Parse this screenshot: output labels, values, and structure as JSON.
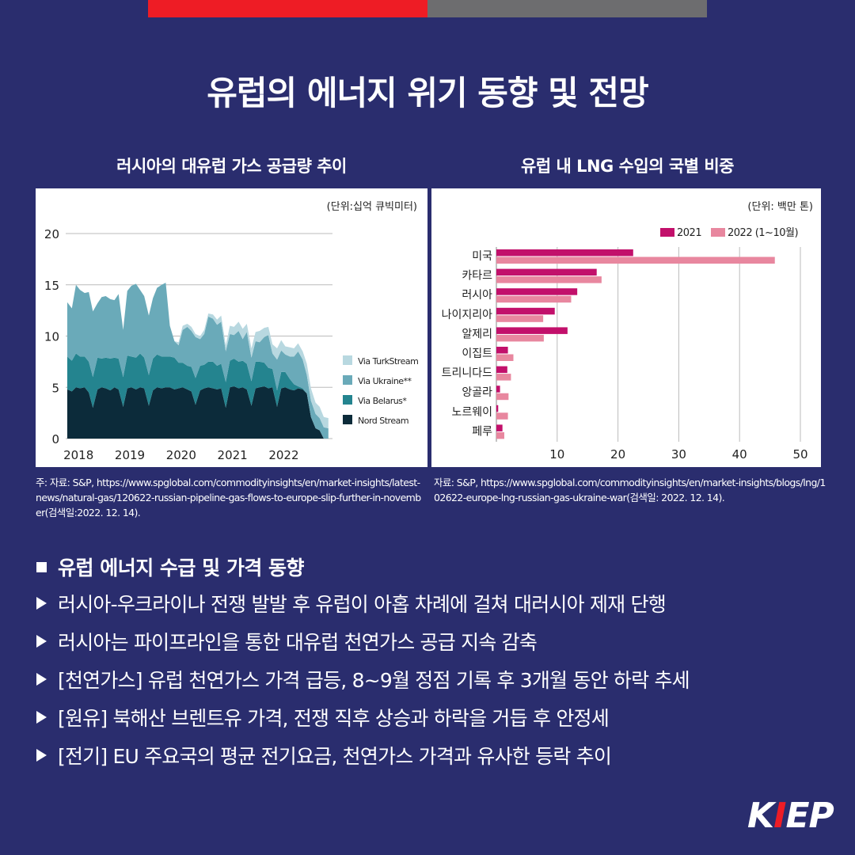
{
  "main_title": "유럽의 에너지 위기 동향 및 전망",
  "left_chart_title": "러시아의 대유럽 가스 공급량 추이",
  "right_chart_title": "유럽 내 LNG 수입의 국별 비중",
  "left_source": "주: 자료: S&P, https://www.spglobal.com/commodityinsights/en/market-insights/latest-news/natural-gas/120622-russian-pipeline-gas-flows-to-europe-slip-further-in-november(검색일:2022. 12. 14).",
  "right_source": "자료: S&P, https://www.spglobal.com/commodityinsights/en/market-insights/blogs/lng/102622-europe-lng-russian-gas-ukraine-war(검색일: 2022. 12. 14).",
  "section_title": "유럽 에너지 수급 및 가격 동향",
  "bullets": [
    "러시아-우크라이나 전쟁 발발 후 유럽이 아홉 차례에 걸쳐 대러시아 제재 단행",
    "러시아는 파이프라인을 통한 대유럽 천연가스 공급 지속 감축",
    "[천연가스] 유럽 천연가스 가격 급등, 8~9월 정점 기록 후 3개월 동안 하락 추세",
    "[원유] 북해산 브렌트유 가격, 전쟁 직후 상승과 하락을 거듭 후 안정세",
    "[전기] EU 주요국의 평균 전기요금, 천연가스 가격과 유사한 등락 추이"
  ],
  "logo": {
    "prefix": "K",
    "accent": "I",
    "suffix": "EP"
  },
  "colors": {
    "background": "#2a2d6e",
    "red": "#ee1c25",
    "gray": "#6d6d6f",
    "nord_stream": "#0c2b3a",
    "belarus": "#24848f",
    "ukraine": "#6aaab9",
    "turkstream": "#b8d8e0",
    "bar_2021": "#c2106b",
    "bar_2022": "#e8879f"
  },
  "chart_data": [
    {
      "type": "area",
      "stacked": true,
      "title": "러시아의 대유럽 가스 공급량 추이",
      "unit": "(단위:십억 큐빅미터)",
      "ylim": [
        0,
        20
      ],
      "yticks": [
        0,
        5,
        10,
        15,
        20
      ],
      "xlim": [
        2017.8,
        2023.0
      ],
      "xticks": [
        2018,
        2019,
        2020,
        2021,
        2022
      ],
      "legend_position": "right",
      "x": [
        2017.83,
        2017.92,
        2018.0,
        2018.08,
        2018.17,
        2018.25,
        2018.33,
        2018.42,
        2018.5,
        2018.58,
        2018.67,
        2018.75,
        2018.83,
        2018.92,
        2019.0,
        2019.08,
        2019.17,
        2019.25,
        2019.33,
        2019.42,
        2019.5,
        2019.58,
        2019.67,
        2019.75,
        2019.83,
        2019.92,
        2020.0,
        2020.08,
        2020.17,
        2020.25,
        2020.33,
        2020.42,
        2020.5,
        2020.58,
        2020.67,
        2020.75,
        2020.83,
        2020.92,
        2021.0,
        2021.08,
        2021.17,
        2021.25,
        2021.33,
        2021.42,
        2021.5,
        2021.58,
        2021.67,
        2021.75,
        2021.83,
        2021.92,
        2022.0,
        2022.08,
        2022.17,
        2022.25,
        2022.33,
        2022.42,
        2022.5,
        2022.58,
        2022.67,
        2022.75,
        2022.83,
        2022.92
      ],
      "series": [
        {
          "name": "Nord Stream",
          "values": [
            4.8,
            4.6,
            5.0,
            4.9,
            5.0,
            4.5,
            3.0,
            4.8,
            5.0,
            4.9,
            4.7,
            5.0,
            4.8,
            3.1,
            4.9,
            5.0,
            4.8,
            5.0,
            4.9,
            3.2,
            4.7,
            5.0,
            4.9,
            5.0,
            5.0,
            4.8,
            4.9,
            5.0,
            4.8,
            4.6,
            3.3,
            4.7,
            4.9,
            5.0,
            4.9,
            4.8,
            4.9,
            3.0,
            5.0,
            5.1,
            4.9,
            5.0,
            4.8,
            3.2,
            4.9,
            5.0,
            5.1,
            4.9,
            5.0,
            3.1,
            4.9,
            5.0,
            4.8,
            4.7,
            4.9,
            4.8,
            4.4,
            2.1,
            1.0,
            0.8,
            0.0,
            0.0
          ]
        },
        {
          "name": "Via Belarus*",
          "values": [
            3.2,
            3.0,
            3.3,
            3.1,
            3.0,
            3.0,
            3.0,
            3.1,
            2.8,
            3.0,
            3.1,
            2.9,
            3.0,
            2.9,
            3.2,
            3.0,
            3.1,
            3.3,
            3.0,
            3.0,
            3.1,
            3.2,
            3.1,
            3.0,
            3.0,
            3.1,
            2.5,
            2.4,
            2.3,
            2.4,
            2.6,
            2.4,
            2.3,
            2.5,
            2.6,
            2.3,
            2.4,
            2.5,
            2.6,
            2.7,
            2.6,
            2.6,
            2.5,
            2.4,
            2.6,
            2.5,
            2.3,
            2.0,
            1.8,
            1.6,
            1.6,
            1.5,
            1.0,
            0.6,
            0.2,
            0.1,
            0.0,
            0.0,
            0.0,
            0.0,
            0.0,
            0.0
          ]
        },
        {
          "name": "Via Ukraine**",
          "values": [
            5.3,
            5.1,
            6.7,
            6.5,
            6.2,
            6.8,
            6.4,
            5.3,
            6.0,
            6.0,
            5.8,
            5.6,
            6.3,
            4.6,
            6.3,
            6.9,
            7.2,
            6.2,
            6.0,
            5.8,
            5.9,
            6.5,
            7.0,
            7.2,
            3.0,
            1.6,
            1.7,
            3.2,
            3.8,
            3.5,
            4.0,
            2.6,
            3.0,
            4.4,
            4.2,
            4.0,
            4.1,
            3.0,
            2.6,
            2.3,
            3.0,
            2.1,
            3.1,
            2.3,
            2.0,
            1.9,
            2.5,
            3.2,
            1.5,
            3.0,
            2.1,
            1.7,
            2.2,
            2.7,
            3.4,
            2.8,
            1.8,
            1.6,
            1.4,
            1.2,
            1.1,
            1.0
          ]
        },
        {
          "name": "Via TurkStream",
          "values": [
            0.0,
            0.0,
            0.0,
            0.0,
            0.0,
            0.0,
            0.0,
            0.0,
            0.0,
            0.0,
            0.0,
            0.0,
            0.0,
            0.0,
            0.0,
            0.0,
            0.0,
            0.0,
            0.0,
            0.0,
            0.0,
            0.0,
            0.0,
            0.0,
            0.0,
            0.0,
            0.3,
            0.4,
            0.3,
            0.4,
            0.3,
            0.3,
            0.4,
            0.3,
            0.4,
            0.5,
            0.6,
            0.6,
            0.8,
            0.8,
            0.9,
            1.0,
            0.8,
            0.9,
            0.9,
            1.1,
            0.9,
            0.8,
            0.9,
            1.1,
            1.0,
            0.8,
            0.9,
            0.8,
            0.8,
            0.8,
            1.1,
            1.2,
            1.1,
            1.1,
            1.0,
            1.0
          ]
        }
      ]
    },
    {
      "type": "bar",
      "orientation": "horizontal",
      "title": "유럽 내 LNG 수입의 국별 비중",
      "unit": "(단위: 백만 톤)",
      "categories": [
        "미국",
        "카타르",
        "러시아",
        "나이지리아",
        "알제리",
        "이집트",
        "트리니다드",
        "앙골라",
        "노르웨이",
        "페루"
      ],
      "series": [
        {
          "name": "2021",
          "values": [
            22.5,
            16.5,
            13.3,
            9.6,
            11.7,
            1.9,
            1.8,
            0.6,
            0.3,
            1.0
          ]
        },
        {
          "name": "2022 (1~10월)",
          "values": [
            45.8,
            17.3,
            12.3,
            7.7,
            7.8,
            2.8,
            2.4,
            2.0,
            1.9,
            1.3
          ]
        }
      ],
      "xlim": [
        0,
        50
      ],
      "xticks": [
        10,
        20,
        30,
        40,
        50
      ],
      "legend_position": "top-right"
    }
  ]
}
